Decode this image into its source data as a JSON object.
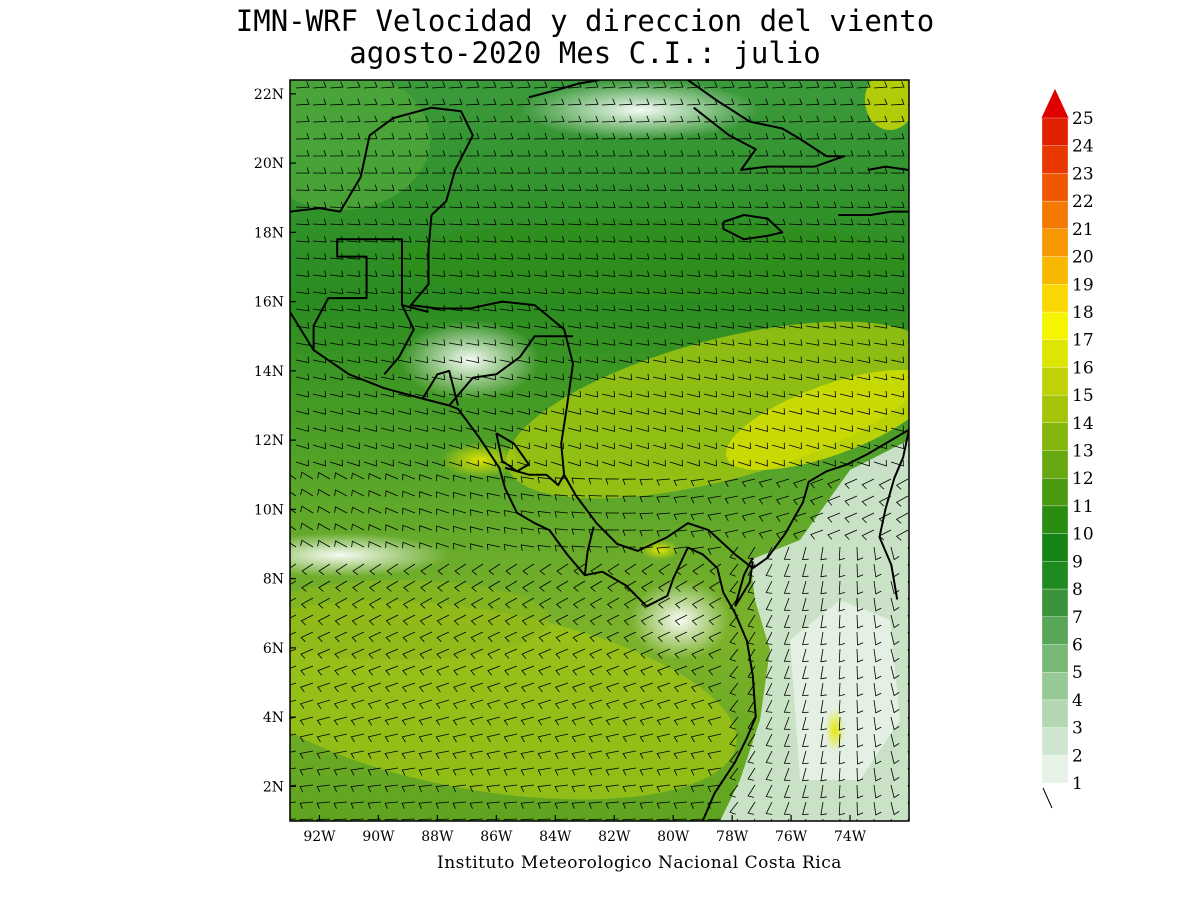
{
  "title": {
    "line1": "IMN-WRF Velocidad y direccion del viento",
    "line2": "agosto-2020 Mes C.I.: julio"
  },
  "credit": "Instituto Meteorologico Nacional Costa Rica",
  "map": {
    "lon_range": [
      -93,
      -72
    ],
    "lat_range": [
      1,
      22.4
    ],
    "lat_ticks": [
      "2N",
      "4N",
      "6N",
      "8N",
      "10N",
      "12N",
      "14N",
      "16N",
      "18N",
      "20N",
      "22N"
    ],
    "lat_values": [
      2,
      4,
      6,
      8,
      10,
      12,
      14,
      16,
      18,
      20,
      22
    ],
    "lon_ticks": [
      "92W",
      "90W",
      "88W",
      "86W",
      "84W",
      "82W",
      "80W",
      "78W",
      "76W",
      "74W"
    ],
    "lon_values": [
      -92,
      -90,
      -88,
      -86,
      -84,
      -82,
      -80,
      -78,
      -76,
      -74
    ]
  },
  "colorbar": {
    "labels": [
      "1",
      "2",
      "3",
      "4",
      "5",
      "6",
      "7",
      "8",
      "9",
      "10",
      "11",
      "12",
      "13",
      "14",
      "15",
      "16",
      "17",
      "18",
      "19",
      "20",
      "21",
      "22",
      "23",
      "24",
      "25"
    ],
    "colors": [
      "#e6f2e6",
      "#cfe5cf",
      "#b3d7b3",
      "#97c997",
      "#77b877",
      "#58a658",
      "#3a953a",
      "#1f8a1f",
      "#168416",
      "#2a8c10",
      "#4a9a10",
      "#68a810",
      "#85b60c",
      "#a3c408",
      "#c0d205",
      "#dde600",
      "#f5f500",
      "#f8d800",
      "#f8b800",
      "#f89800",
      "#f57800",
      "#f05800",
      "#e83800",
      "#e02000"
    ],
    "arrow_color": "#e00000"
  },
  "wind_field": {
    "color_hint": "streamlines of barbs over the region; strong trades in the Caribbean, westerlies in the Pacific"
  }
}
